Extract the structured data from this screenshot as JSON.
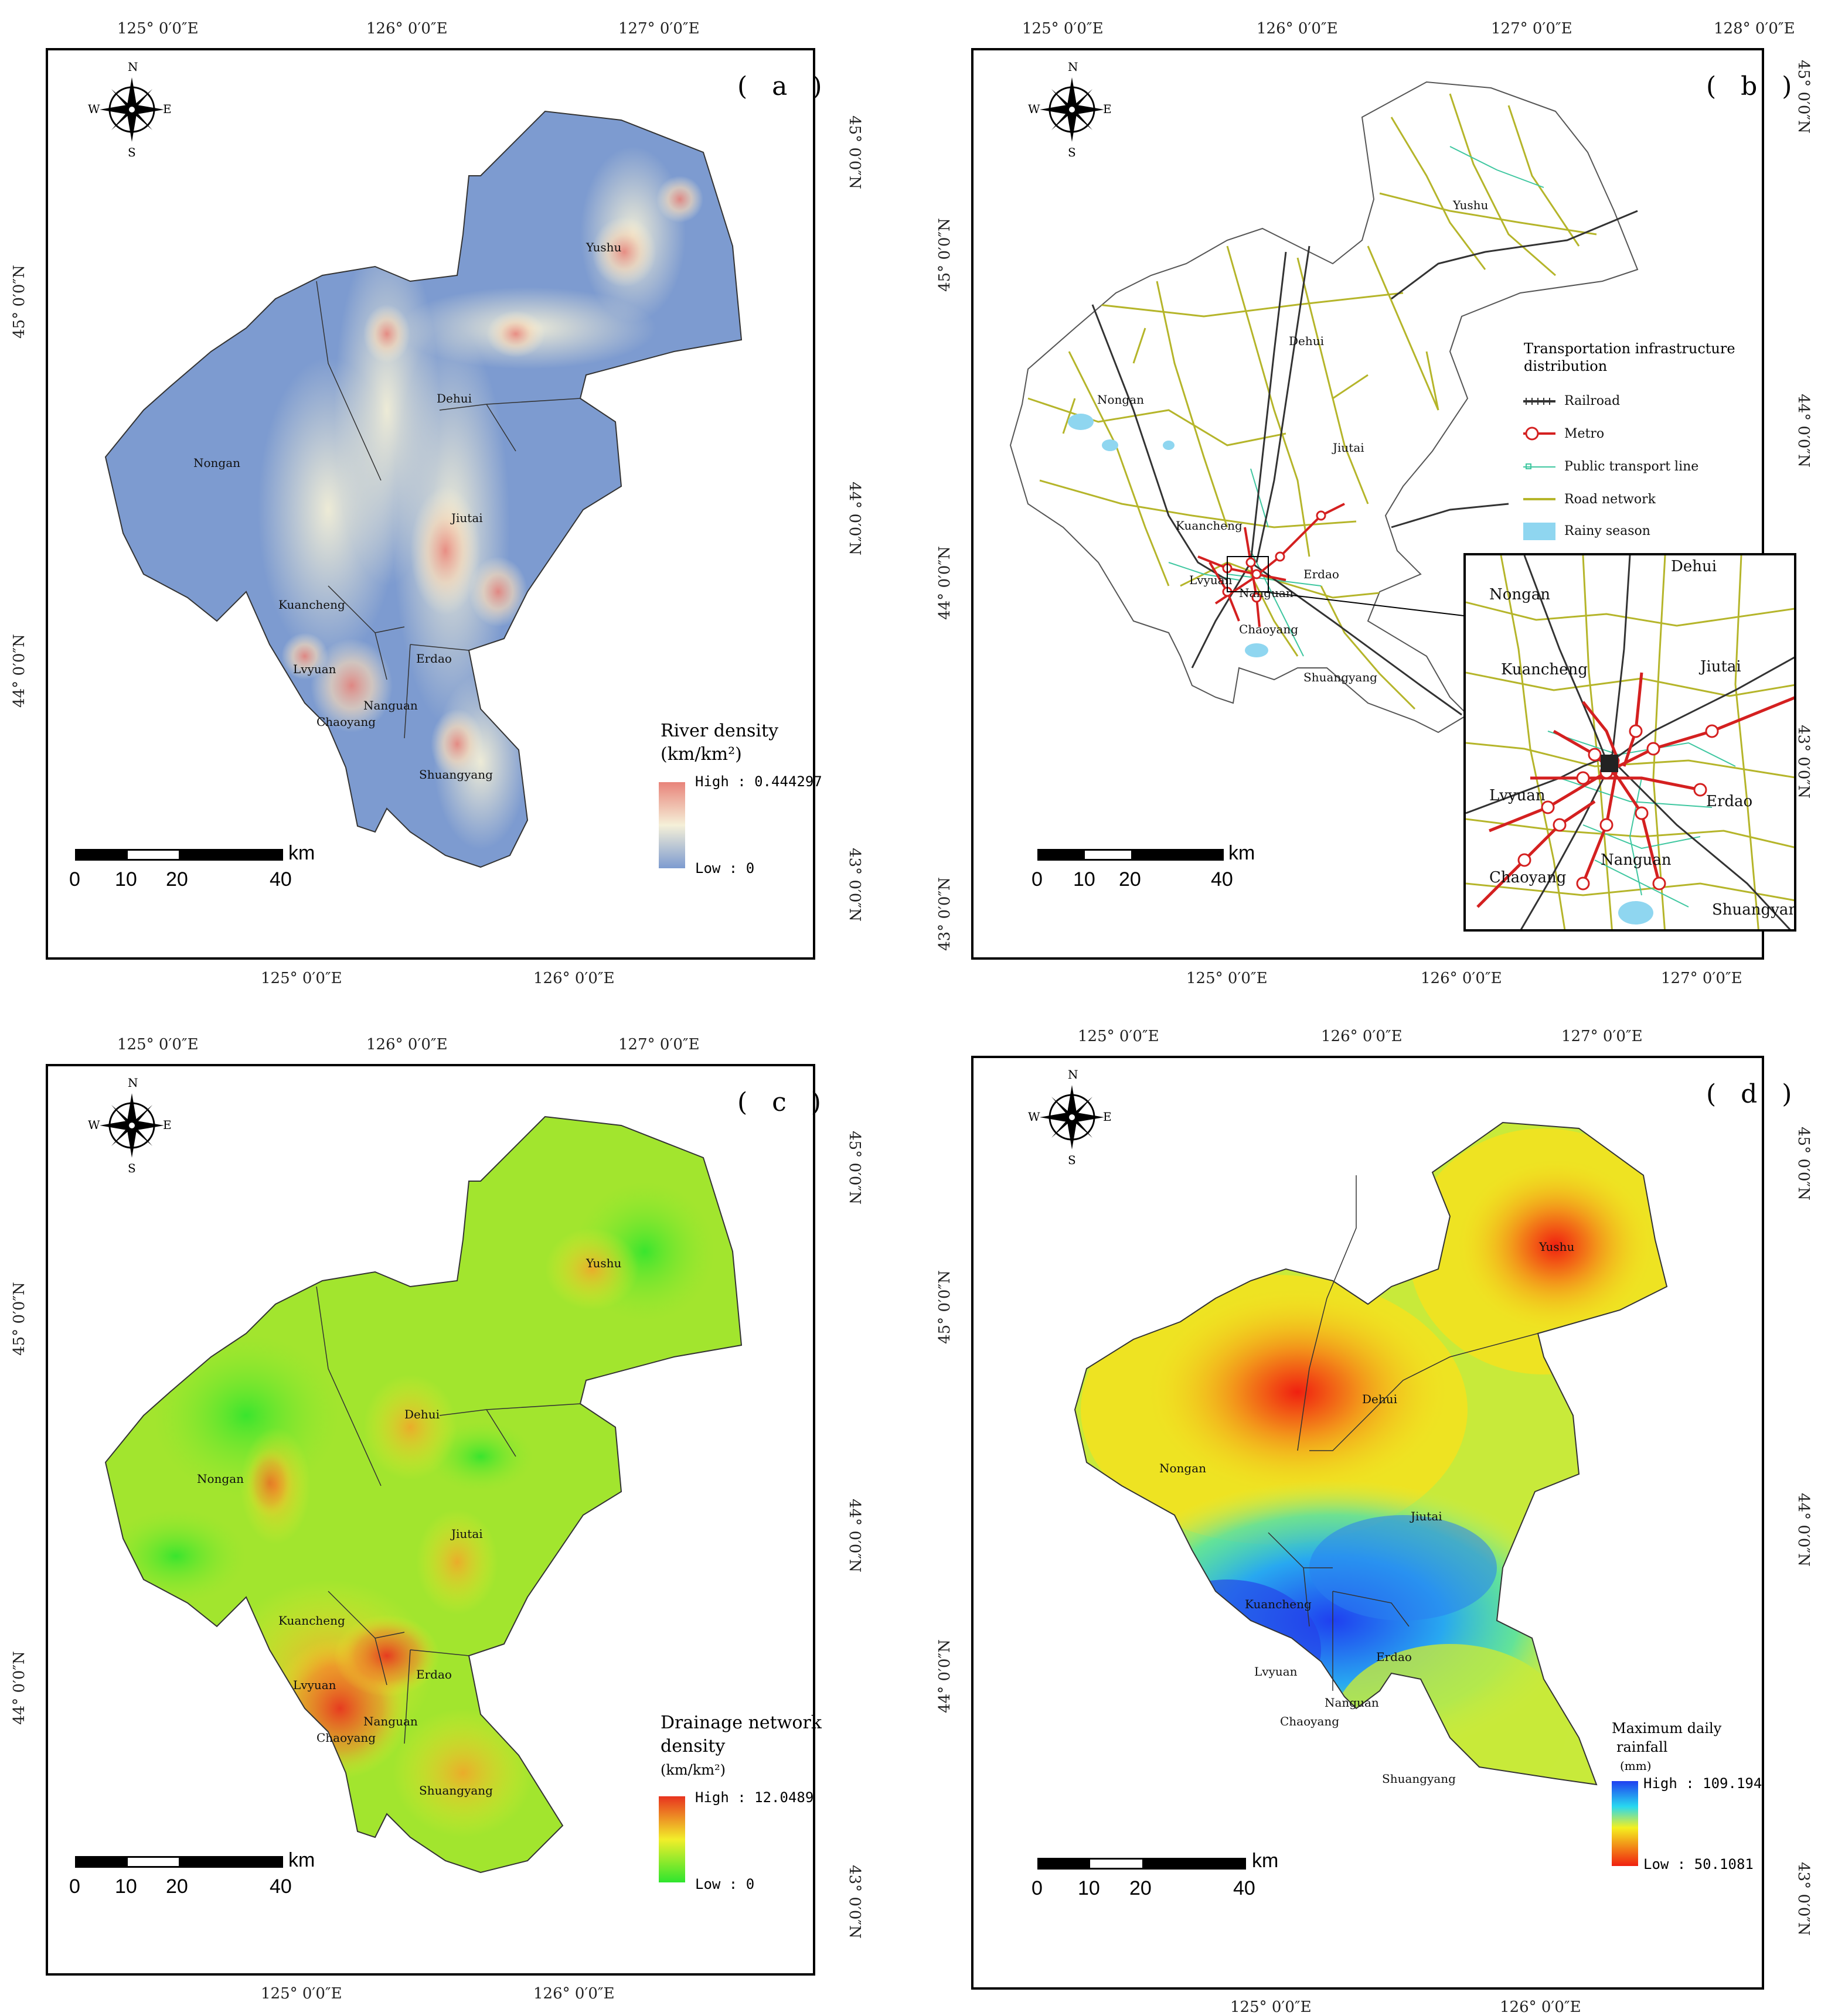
{
  "panels": [
    {
      "id": "a",
      "label": "( a )",
      "top_ticks": [
        "125° 0′0″E",
        "126° 0′0″E",
        "127° 0′0″E"
      ],
      "bottom_ticks": [
        "125° 0′0″E",
        "126° 0′0″E"
      ],
      "left_ticks": [
        "45° 0′0″N",
        "44° 0′0″N"
      ],
      "right_ticks": [
        "45° 0′0″N",
        "44° 0′0″N",
        "43° 0′0″N"
      ],
      "places": [
        "Yushu",
        "Dehui",
        "Nongan",
        "Jiutai",
        "Kuancheng",
        "Erdao",
        "Lvyuan",
        "Nanguan",
        "Chaoyang",
        "Shuangyang"
      ],
      "legend": {
        "title_line1": "River density",
        "title_line2": "(km/km²)",
        "high": "High : 0.444297",
        "low": "Low  : 0",
        "high_color": "#e8837a",
        "mid_color": "#f5f0d8",
        "low_color": "#7d9bd0"
      },
      "scale": {
        "unit": "km",
        "ticks": [
          "0",
          "10",
          "20",
          "40"
        ]
      }
    },
    {
      "id": "b",
      "label": "( b )",
      "top_ticks": [
        "125° 0′0″E",
        "126° 0′0″E",
        "127° 0′0″E",
        "128° 0′0″E"
      ],
      "bottom_ticks": [
        "125° 0′0″E",
        "126° 0′0″E",
        "127° 0′0″E"
      ],
      "left_ticks": [
        "45° 0′0″N",
        "44° 0′0″N",
        "43° 0′0″N"
      ],
      "right_ticks": [
        "45° 0′0″N",
        "44° 0′0″N",
        "43° 0′0″N"
      ],
      "places": [
        "Yushu",
        "Dehui",
        "Nongan",
        "Jiutai",
        "Kuancheng",
        "Erdao",
        "Lvyuan",
        "Nanguan",
        "Chaoyang",
        "Shuangyang"
      ],
      "inset_places": [
        "Dehui",
        "Nongan",
        "Kuancheng",
        "Jiutai",
        "Lvyuan",
        "Erdao",
        "Nanguan",
        "Chaoyang",
        "Shuangyang"
      ],
      "legend": {
        "title_line1": "Transportation infrastructure",
        "title_line2": "distribution",
        "items": [
          "Railroad",
          "Metro",
          "Public transport line",
          "Road network",
          "Rainy season"
        ],
        "colors": {
          "railroad": "#333333",
          "metro": "#d42020",
          "public": "#3fc7a0",
          "road": "#b5b52a",
          "rainy": "#8fd6f0"
        }
      },
      "scale": {
        "unit": "km",
        "ticks": [
          "0",
          "10",
          "20",
          "40"
        ]
      }
    },
    {
      "id": "c",
      "label": "( c )",
      "top_ticks": [
        "125° 0′0″E",
        "126° 0′0″E",
        "127° 0′0″E"
      ],
      "bottom_ticks": [
        "125° 0′0″E",
        "126° 0′0″E"
      ],
      "left_ticks": [
        "45° 0′0″N",
        "44° 0′0″N"
      ],
      "right_ticks": [
        "45° 0′0″N",
        "44° 0′0″N",
        "43° 0′0″N"
      ],
      "places": [
        "Yushu",
        "Dehui",
        "Nongan",
        "Jiutai",
        "Kuancheng",
        "Erdao",
        "Lvyuan",
        "Nanguan",
        "Chaoyang",
        "Shuangyang"
      ],
      "legend": {
        "title_line1": "Drainage network",
        "title_line2": "density",
        "title_line3": "(km/km²)",
        "high": "High : 12.0489",
        "low": "Low  : 0",
        "high_color": "#e8331f",
        "mid_color": "#f2ee2a",
        "low_color": "#2ee52e"
      },
      "scale": {
        "unit": "km",
        "ticks": [
          "0",
          "10",
          "20",
          "40"
        ]
      }
    },
    {
      "id": "d",
      "label": "( d )",
      "top_ticks": [
        "125° 0′0″E",
        "126° 0′0″E",
        "127° 0′0″E"
      ],
      "bottom_ticks": [
        "125° 0′0″E",
        "126° 0′0″E"
      ],
      "left_ticks": [
        "45° 0′0″N",
        "44° 0′0″N"
      ],
      "right_ticks": [
        "45° 0′0″N",
        "44° 0′0″N",
        "43° 0′0″N"
      ],
      "places": [
        "Yushu",
        "Dehui",
        "Nongan",
        "Jiutai",
        "Kuancheng",
        "Erdao",
        "Lvyuan",
        "Nanguan",
        "Chaoyang",
        "Shuangyang"
      ],
      "legend": {
        "title_line1": "Maximum daily",
        "title_line2": "rainfall",
        "title_line3": "(mm)",
        "high": "High : 109.194",
        "low": "Low   : 50.1081",
        "high_color": "#1f3ff0",
        "low_color": "#f02010"
      },
      "scale": {
        "unit": "km",
        "ticks": [
          "0",
          "10",
          "20",
          "40"
        ]
      }
    }
  ],
  "compass": {
    "n": "N",
    "s": "S",
    "e": "E",
    "w": "W"
  }
}
